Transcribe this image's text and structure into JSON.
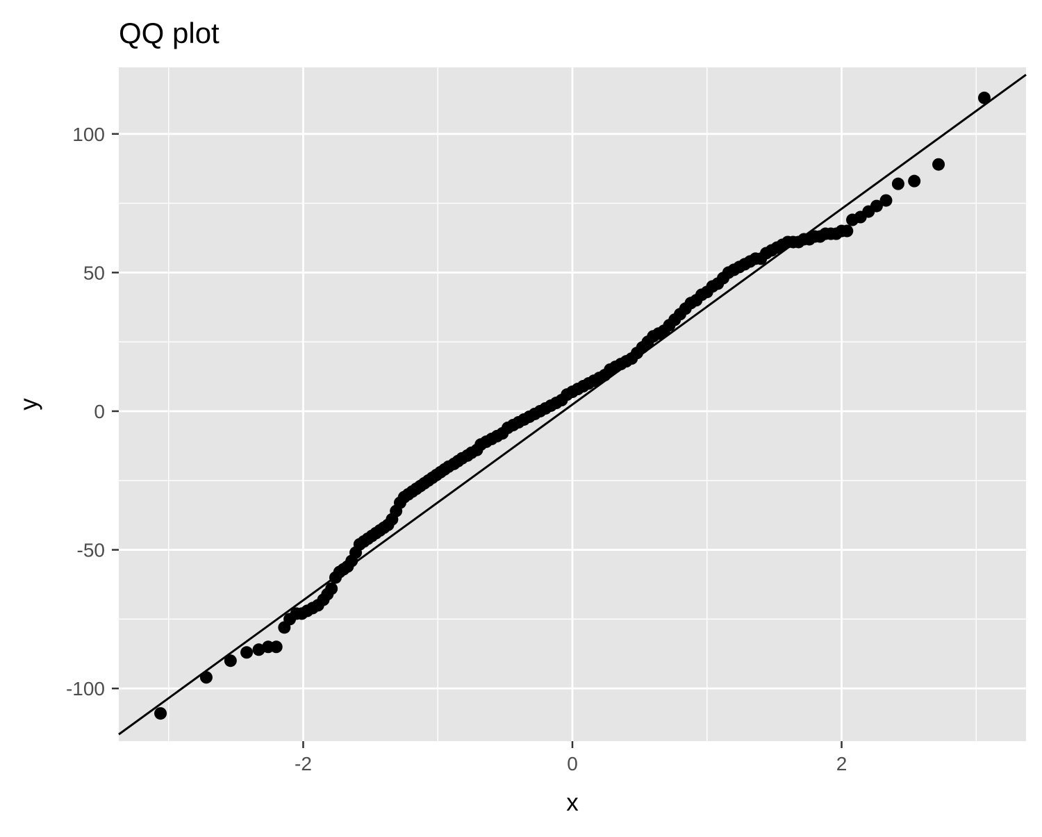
{
  "chart_data": {
    "type": "scatter",
    "title": "QQ plot",
    "xlabel": "x",
    "ylabel": "y",
    "xlim": [
      -3.37,
      3.37
    ],
    "ylim": [
      -119,
      124
    ],
    "x_ticks": [
      -2,
      0,
      2
    ],
    "x_tick_labels": [
      "-2",
      "0",
      "2"
    ],
    "y_ticks": [
      -100,
      -50,
      0,
      50,
      100
    ],
    "y_tick_labels": [
      "-100",
      "-50",
      "0",
      "50",
      "100"
    ],
    "grid": true,
    "legend": "none",
    "reference_line": {
      "intercept": 2.4,
      "slope": 35.3
    },
    "style": {
      "panel_background": "#e5e5e5",
      "grid_color": "#ffffff",
      "point_color": "#000000",
      "line_color": "#000000"
    },
    "series": [
      {
        "x": [
          -3.06,
          -2.72,
          -2.54,
          -2.42,
          -2.33,
          -2.26,
          -2.2,
          -2.14,
          -2.1,
          -2.05,
          -2.01,
          -1.97,
          -1.93,
          -1.89,
          -1.85,
          -1.82,
          -1.79,
          -1.76,
          -1.73,
          -1.7,
          -1.67,
          -1.64,
          -1.61,
          -1.58,
          -1.55,
          -1.52,
          -1.49,
          -1.46,
          -1.43,
          -1.4,
          -1.37,
          -1.34,
          -1.31,
          -1.28,
          -1.25,
          -1.22,
          -1.19,
          -1.16,
          -1.13,
          -1.1,
          -1.07,
          -1.04,
          -1.01,
          -0.98,
          -0.95,
          -0.92,
          -0.88,
          -0.85,
          -0.82,
          -0.78,
          -0.75,
          -0.71,
          -0.68,
          -0.64,
          -0.6,
          -0.56,
          -0.52,
          -0.48,
          -0.44,
          -0.4,
          -0.36,
          -0.32,
          -0.28,
          -0.24,
          -0.2,
          -0.16,
          -0.12,
          -0.08,
          -0.04,
          0.0,
          0.04,
          0.08,
          0.12,
          0.16,
          0.2,
          0.24,
          0.28,
          0.32,
          0.36,
          0.4,
          0.44,
          0.48,
          0.52,
          0.56,
          0.6,
          0.64,
          0.68,
          0.72,
          0.76,
          0.8,
          0.84,
          0.88,
          0.92,
          0.96,
          1.0,
          1.04,
          1.08,
          1.12,
          1.16,
          1.2,
          1.24,
          1.28,
          1.32,
          1.36,
          1.4,
          1.44,
          1.48,
          1.52,
          1.56,
          1.6,
          1.64,
          1.68,
          1.72,
          1.76,
          1.8,
          1.84,
          1.88,
          1.92,
          1.96,
          2.0,
          2.04,
          2.08,
          2.14,
          2.2,
          2.26,
          2.33,
          2.42,
          2.54,
          2.72,
          3.06
        ],
        "y": [
          -109,
          -96,
          -90,
          -87,
          -86,
          -85,
          -85,
          -78,
          -75,
          -73,
          -73,
          -72,
          -71,
          -70,
          -68,
          -66,
          -64,
          -60,
          -58,
          -57,
          -56,
          -54,
          -51,
          -48,
          -47,
          -46,
          -45,
          -44,
          -43,
          -42,
          -41,
          -39,
          -36,
          -33,
          -31,
          -30,
          -29,
          -28,
          -27,
          -26,
          -25,
          -24,
          -23,
          -22,
          -21,
          -20,
          -19,
          -18,
          -17,
          -16,
          -15,
          -14,
          -12,
          -11,
          -10,
          -9,
          -8,
          -6,
          -5,
          -4,
          -3,
          -2,
          -1,
          0,
          1,
          2,
          3,
          4,
          6,
          7,
          8,
          9,
          10,
          11,
          12,
          13,
          15,
          16,
          17,
          18,
          19,
          21,
          23,
          25,
          27,
          28,
          29,
          31,
          33,
          35,
          37,
          39,
          40,
          42,
          43,
          45,
          46,
          48,
          50,
          51,
          52,
          53,
          54,
          55,
          55,
          57,
          58,
          59,
          60,
          61,
          61,
          61,
          62,
          62,
          63,
          63,
          64,
          64,
          64,
          65,
          65,
          69,
          70,
          72,
          74,
          76,
          82,
          83,
          89,
          113
        ]
      }
    ]
  }
}
